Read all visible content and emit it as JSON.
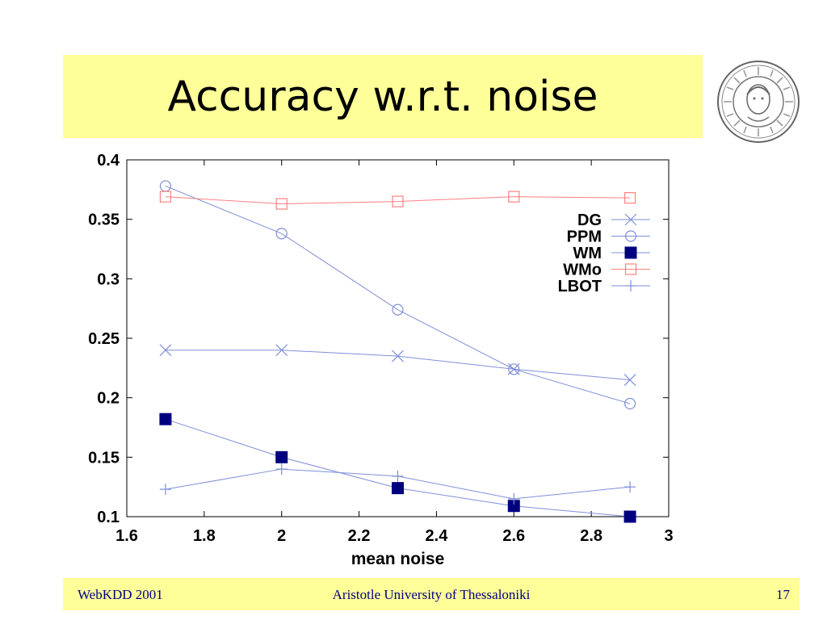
{
  "slide": {
    "title": "Accuracy w.r.t. noise",
    "footer_left": "WebKDD 2001",
    "footer_center": "Aristotle University of Thessaloniki",
    "footer_right": "17",
    "bar_color": "#ffff99",
    "footer_text_color": "#00007f",
    "seal_icon": "university-seal-icon"
  },
  "chart_data": {
    "type": "line",
    "xlabel": "mean noise",
    "ylabel": "",
    "xlim": [
      1.6,
      3
    ],
    "ylim": [
      0.1,
      0.4
    ],
    "xticks": [
      "1.6",
      "1.8",
      "2",
      "2.2",
      "2.4",
      "2.6",
      "2.8",
      "3"
    ],
    "yticks": [
      "0.1",
      "0.15",
      "0.2",
      "0.25",
      "0.3",
      "0.35",
      "0.4"
    ],
    "legend_position": "top-right",
    "grid": false,
    "x": [
      1.7,
      2.0,
      2.3,
      2.6,
      2.9
    ],
    "series": [
      {
        "name": "DG",
        "values": [
          0.24,
          0.24,
          0.235,
          0.224,
          0.215
        ],
        "color": "#7f8fd8",
        "marker": "cross-x"
      },
      {
        "name": "PPM",
        "values": [
          0.378,
          0.338,
          0.274,
          0.224,
          0.195
        ],
        "color": "#7f8fd8",
        "marker": "circle"
      },
      {
        "name": "WM",
        "values": [
          0.182,
          0.15,
          0.124,
          0.109,
          0.1
        ],
        "color": "#7f8fd8",
        "marker": "filled-square",
        "marker_color": "#00007f"
      },
      {
        "name": "WMo",
        "values": [
          0.369,
          0.363,
          0.365,
          0.369,
          0.368
        ],
        "color": "#ff8080",
        "marker": "square"
      },
      {
        "name": "LBOT",
        "values": [
          0.123,
          0.14,
          0.134,
          0.115,
          0.125
        ],
        "color": "#7f8fd8",
        "marker": "plus"
      }
    ]
  }
}
